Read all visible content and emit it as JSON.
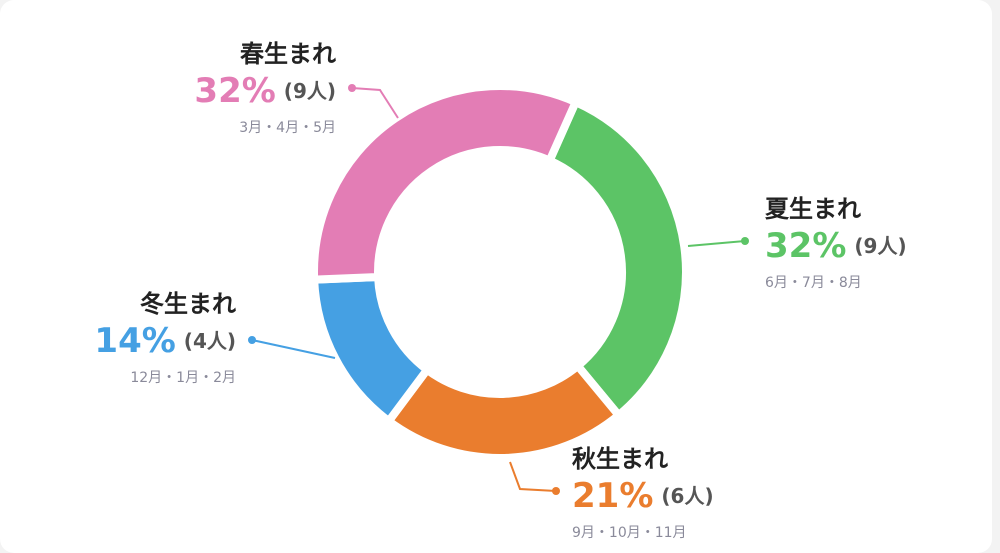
{
  "chart_data": {
    "type": "donut",
    "categories": [
      "夏生まれ",
      "秋生まれ",
      "冬生まれ",
      "春生まれ"
    ],
    "values": [
      32,
      21,
      14,
      32
    ],
    "value_labels": [
      "32%",
      "21%",
      "14%",
      "32%"
    ],
    "count_labels": [
      "(9人)",
      "(6人)",
      "(4人)",
      "(9人)"
    ],
    "months": [
      "6月・7月・8月",
      "9月・10月・11月",
      "12月・1月・2月",
      "3月・4月・5月"
    ],
    "colors": [
      "#5cc466",
      "#ea7d2e",
      "#45a0e3",
      "#e37db5"
    ]
  }
}
